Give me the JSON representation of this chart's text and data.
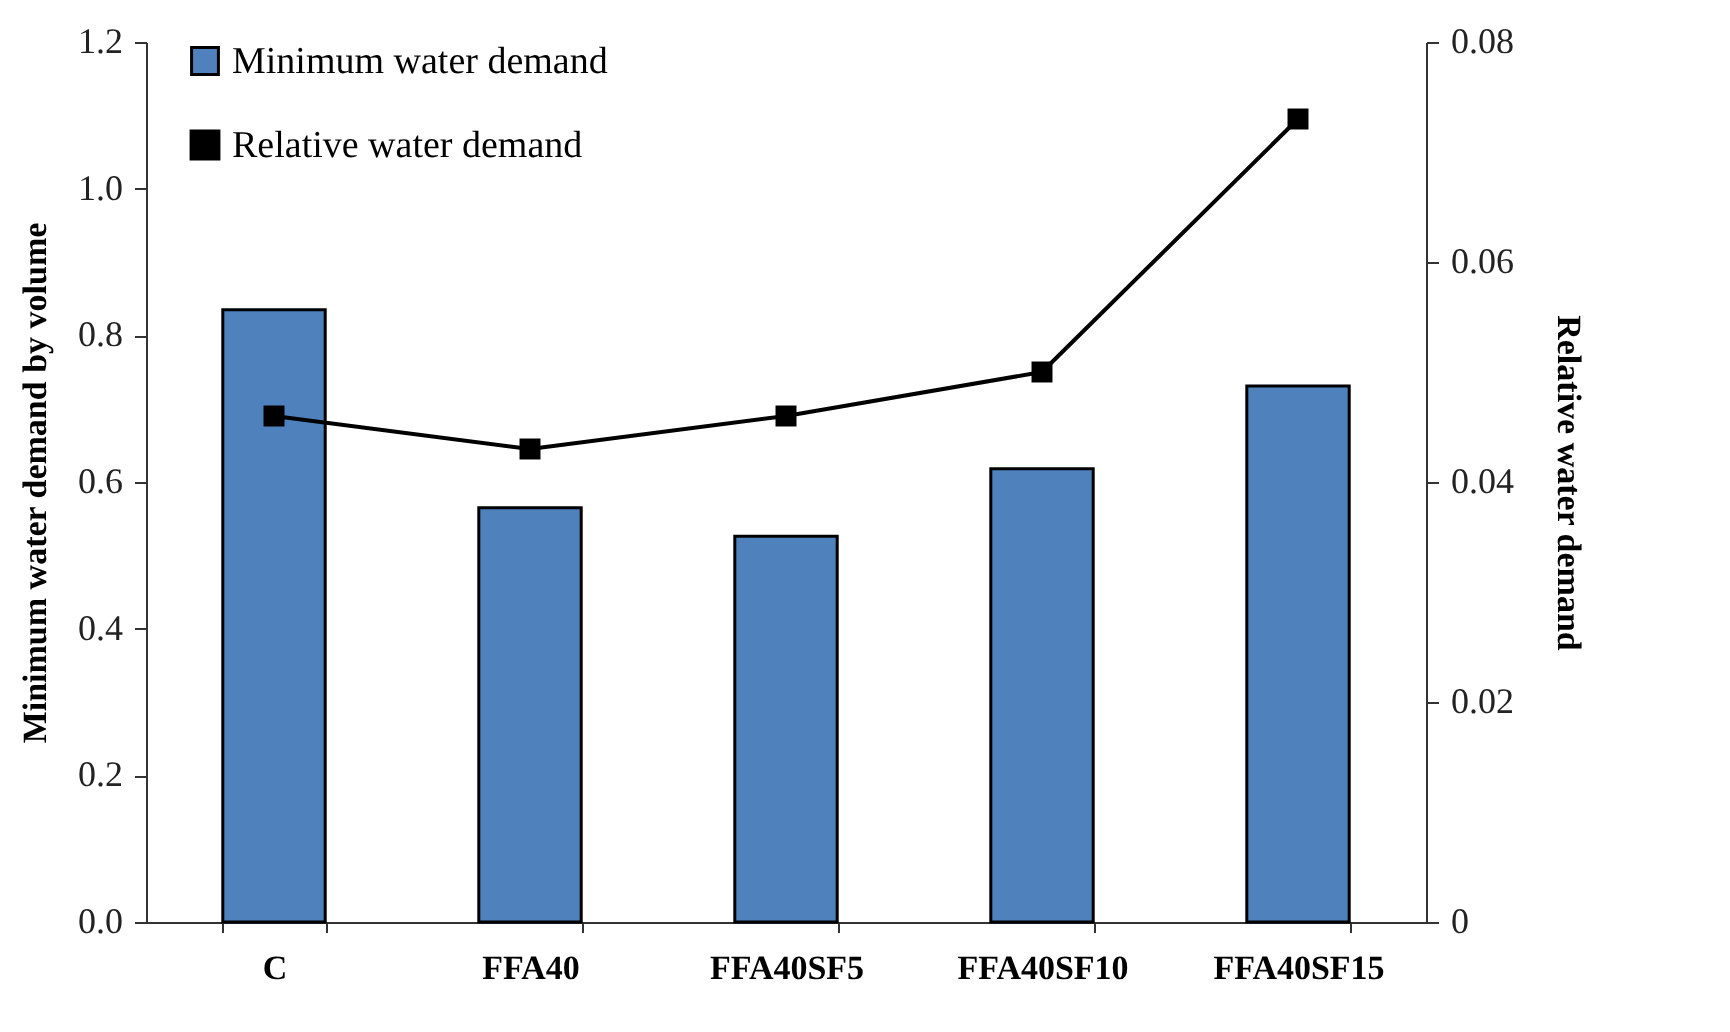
{
  "chart_data": {
    "type": "bar",
    "categories": [
      "C",
      "FFA40",
      "FFA40SF5",
      "FFA40SF10",
      "FFA40SF15"
    ],
    "ylabel": "Minimum water demand by volume",
    "y2label": "Relative water demand",
    "ylim": [
      0,
      1.2
    ],
    "yticks": [
      {
        "value": 0,
        "label": "0.0"
      },
      0.2,
      0.4,
      0.6,
      0.8,
      {
        "value": 1,
        "label": "1.0"
      },
      1.2
    ],
    "y2lim": [
      0,
      0.08
    ],
    "y2ticks": [
      {
        "value": 0,
        "label": "0"
      },
      0.02,
      0.04,
      0.06,
      0.08
    ],
    "series": [
      {
        "name": "Minimum water demand",
        "color": "#4f81bd",
        "values": [
          0.835,
          0.565,
          0.526,
          0.618,
          0.731
        ]
      },
      {
        "name": "Relative water demand",
        "type": "line",
        "axis": "y2",
        "color": "#000000",
        "values": [
          0.046,
          0.043,
          0.046,
          0.05,
          0.073
        ]
      }
    ],
    "legend": "top left",
    "grid": false,
    "marker": "square",
    "line_style": "solid"
  }
}
